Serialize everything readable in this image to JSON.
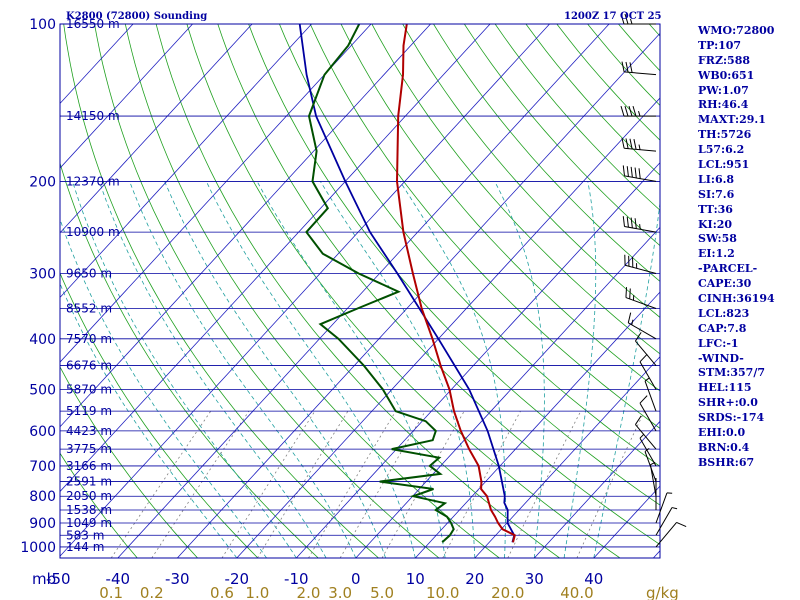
{
  "header": {
    "station": "K2800 (72800) Sounding",
    "time": "1200Z 17 OCT 25"
  },
  "colors": {
    "frame": "#0000a0",
    "isobar": "#0000a0",
    "isotherm": "#2020c0",
    "dry_adiabat": "#20a020",
    "moist_adiabat": "#20a0a0",
    "mixing_ratio": "#808080",
    "temperature": "#b00000",
    "dewpoint": "#005000",
    "parcel": "#0000a0",
    "mixing_label": "#a08020"
  },
  "stats": [
    "WMO:72800",
    "TP:107",
    "FRZ:588",
    "WB0:651",
    "PW:1.07",
    "RH:46.4",
    "MAXT:29.1",
    "TH:5726",
    "L57:6.2",
    "LCL:951",
    "LI:6.8",
    "SI:7.6",
    "TT:36",
    "KI:20",
    "SW:58",
    "EI:1.2",
    "-PARCEL-",
    "CAPE:30",
    "CINH:36194",
    "LCL:823",
    "CAP:7.8",
    "LFC:-1",
    "-WIND-",
    "STM:357/7",
    "HEL:115",
    "SHR+:0.0",
    "SRDS:-174",
    "EHI:0.0",
    "BRN:0.4",
    "BSHR:67"
  ],
  "chart_data": {
    "type": "skew-t",
    "x_axis_unit": "mb",
    "pressure_levels": [
      100,
      200,
      300,
      400,
      500,
      600,
      700,
      800,
      900,
      1000
    ],
    "temperature_ticks": [
      -50,
      -40,
      -30,
      -20,
      -10,
      0,
      10,
      20,
      30,
      40
    ],
    "mixing_ratio_ticks": [
      "0.1",
      "0.2",
      "0.6",
      "1.0",
      "2.0",
      "3.0",
      "5.0",
      "10.0",
      "20.0",
      "40.0"
    ],
    "mixing_ratio_unit": "g/kg",
    "heights": [
      {
        "p": 100,
        "label": "16550 m"
      },
      {
        "p": 150,
        "label": "14150 m"
      },
      {
        "p": 200,
        "label": "12370 m"
      },
      {
        "p": 250,
        "label": "10900 m"
      },
      {
        "p": 300,
        "label": "9650 m"
      },
      {
        "p": 350,
        "label": "8552 m"
      },
      {
        "p": 400,
        "label": "7570 m"
      },
      {
        "p": 450,
        "label": "6676 m"
      },
      {
        "p": 500,
        "label": "5870 m"
      },
      {
        "p": 550,
        "label": "5119 m"
      },
      {
        "p": 600,
        "label": "4423 m"
      },
      {
        "p": 650,
        "label": "3775 m"
      },
      {
        "p": 700,
        "label": "3166 m"
      },
      {
        "p": 750,
        "label": "2591 m"
      },
      {
        "p": 800,
        "label": "2050 m"
      },
      {
        "p": 850,
        "label": "1538 m"
      },
      {
        "p": 900,
        "label": "1049 m"
      },
      {
        "p": 950,
        "label": "583 m"
      },
      {
        "p": 1000,
        "label": "144 m"
      }
    ],
    "temperature_profile": [
      [
        980,
        24.0
      ],
      [
        950,
        23.2
      ],
      [
        925,
        20.2
      ],
      [
        900,
        18.5
      ],
      [
        875,
        17.0
      ],
      [
        850,
        15.3
      ],
      [
        800,
        12.5
      ],
      [
        775,
        10.4
      ],
      [
        750,
        9.3
      ],
      [
        700,
        6.4
      ],
      [
        650,
        2.2
      ],
      [
        600,
        -2.0
      ],
      [
        550,
        -6.2
      ],
      [
        500,
        -10.3
      ],
      [
        450,
        -15.5
      ],
      [
        400,
        -21.0
      ],
      [
        350,
        -27.5
      ],
      [
        300,
        -34.4
      ],
      [
        250,
        -42.4
      ],
      [
        200,
        -51.3
      ],
      [
        150,
        -61.2
      ],
      [
        125,
        -66.8
      ],
      [
        110,
        -71.2
      ],
      [
        100,
        -74.0
      ]
    ],
    "dewpoint_profile": [
      [
        980,
        12.1
      ],
      [
        950,
        12.3
      ],
      [
        925,
        12.0
      ],
      [
        900,
        10.6
      ],
      [
        875,
        8.9
      ],
      [
        850,
        6.0
      ],
      [
        825,
        6.5
      ],
      [
        800,
        0.1
      ],
      [
        775,
        2.4
      ],
      [
        750,
        -7.8
      ],
      [
        725,
        1.2
      ],
      [
        700,
        -1.8
      ],
      [
        675,
        -1.5
      ],
      [
        650,
        -10.8
      ],
      [
        625,
        -5.3
      ],
      [
        600,
        -6.2
      ],
      [
        575,
        -9.4
      ],
      [
        550,
        -16.0
      ],
      [
        500,
        -21.5
      ],
      [
        450,
        -28.4
      ],
      [
        400,
        -36.8
      ],
      [
        375,
        -42.1
      ],
      [
        350,
        -38.3
      ],
      [
        325,
        -34.0
      ],
      [
        300,
        -43.5
      ],
      [
        275,
        -52.6
      ],
      [
        250,
        -58.7
      ],
      [
        225,
        -58.8
      ],
      [
        200,
        -65.5
      ],
      [
        175,
        -69.5
      ],
      [
        150,
        -76.2
      ],
      [
        125,
        -80.0
      ],
      [
        110,
        -80.5
      ],
      [
        100,
        -82.0
      ]
    ],
    "parcel_profile": [
      [
        980,
        23.9
      ],
      [
        950,
        23.1
      ],
      [
        900,
        20.1
      ],
      [
        850,
        18.1
      ],
      [
        823,
        16.4
      ],
      [
        800,
        15.5
      ],
      [
        700,
        9.8
      ],
      [
        600,
        2.5
      ],
      [
        500,
        -7.0
      ],
      [
        400,
        -20.0
      ],
      [
        300,
        -37.0
      ],
      [
        250,
        -48.0
      ],
      [
        200,
        -60.0
      ],
      [
        150,
        -75.0
      ],
      [
        125,
        -83.0
      ],
      [
        100,
        -92.0
      ]
    ],
    "wind_barbs": [
      {
        "p": 100,
        "dir": 270,
        "spd": 25
      },
      {
        "p": 125,
        "dir": 275,
        "spd": 30
      },
      {
        "p": 150,
        "dir": 270,
        "spd": 45
      },
      {
        "p": 175,
        "dir": 275,
        "spd": 45
      },
      {
        "p": 200,
        "dir": 280,
        "spd": 50
      },
      {
        "p": 250,
        "dir": 280,
        "spd": 45
      },
      {
        "p": 300,
        "dir": 285,
        "spd": 35
      },
      {
        "p": 350,
        "dir": 290,
        "spd": 25
      },
      {
        "p": 400,
        "dir": 300,
        "spd": 15
      },
      {
        "p": 450,
        "dir": 320,
        "spd": 10
      },
      {
        "p": 500,
        "dir": 330,
        "spd": 10
      },
      {
        "p": 550,
        "dir": 340,
        "spd": 5
      },
      {
        "p": 600,
        "dir": 330,
        "spd": 10
      },
      {
        "p": 650,
        "dir": 320,
        "spd": 10
      },
      {
        "p": 700,
        "dir": 330,
        "spd": 5
      },
      {
        "p": 750,
        "dir": 340,
        "spd": 5
      },
      {
        "p": 800,
        "dir": 350,
        "spd": 5
      },
      {
        "p": 850,
        "dir": 0,
        "spd": 0
      },
      {
        "p": 900,
        "dir": 20,
        "spd": 5
      },
      {
        "p": 950,
        "dir": 30,
        "spd": 5
      },
      {
        "p": 1000,
        "dir": 40,
        "spd": 10
      }
    ]
  }
}
